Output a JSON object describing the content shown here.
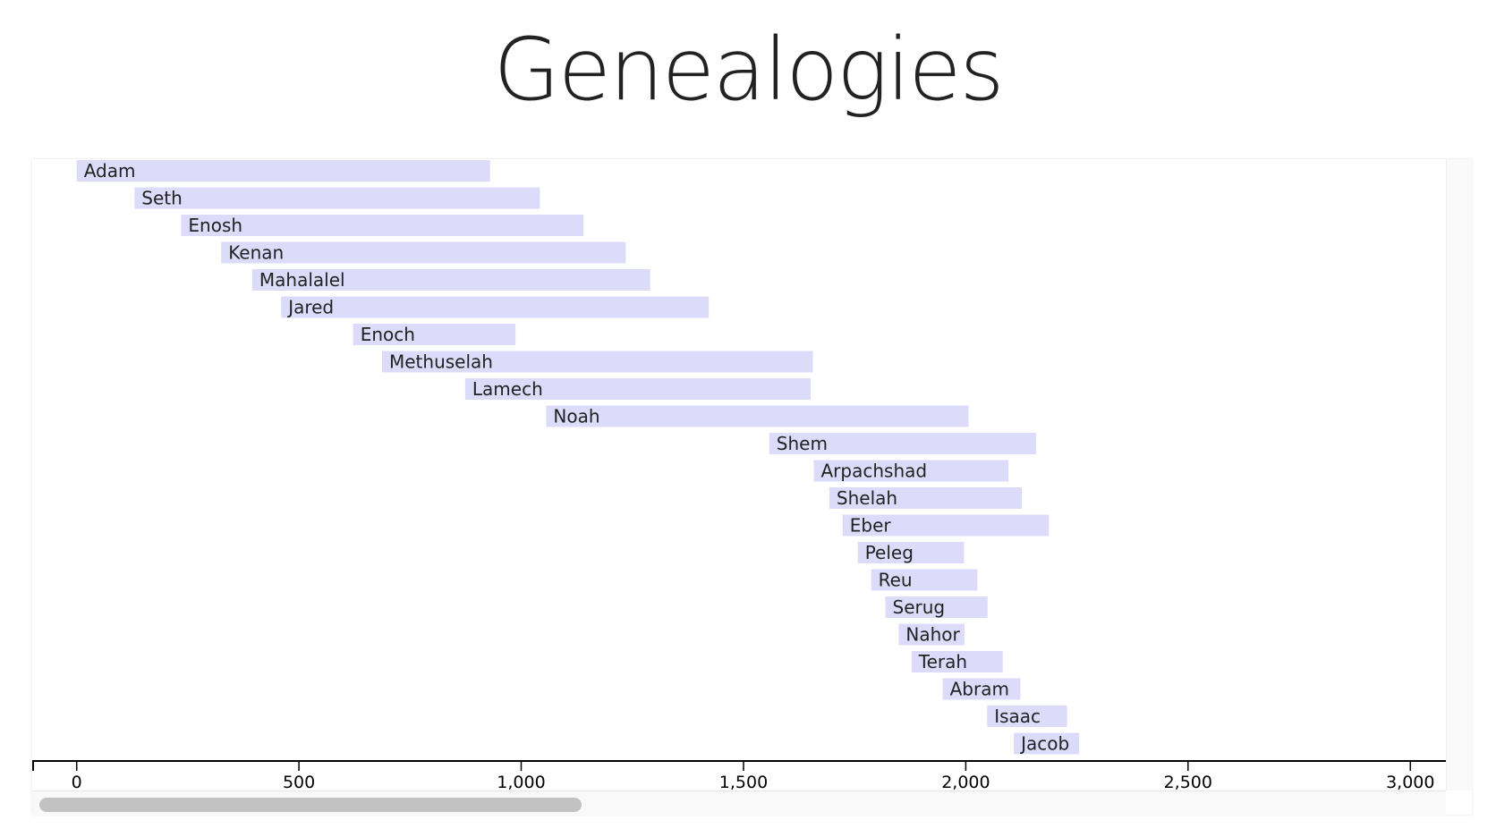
{
  "page": {
    "title": "Genealogies"
  },
  "colors": {
    "bar_fill": "#dcdcfa",
    "axis": "#000000",
    "title": "#222222",
    "scroll_thumb": "#c2c2c2"
  },
  "chart_data": {
    "type": "bar",
    "orientation": "horizontal-range",
    "title": "Genealogies",
    "xlabel": "",
    "ylabel": "",
    "xlim": [
      -100,
      3080
    ],
    "x_ticks": [
      0,
      500,
      1000,
      1500,
      2000,
      2500,
      3000
    ],
    "x_tick_labels": [
      "0",
      "500",
      "1,000",
      "1,500",
      "2,000",
      "2,500",
      "3,000"
    ],
    "grid": false,
    "series": [
      {
        "values": [
          {
            "name": "Adam",
            "start": 0,
            "end": 930
          },
          {
            "name": "Seth",
            "start": 130,
            "end": 1042
          },
          {
            "name": "Enosh",
            "start": 235,
            "end": 1140
          },
          {
            "name": "Kenan",
            "start": 325,
            "end": 1235
          },
          {
            "name": "Mahalalel",
            "start": 395,
            "end": 1290
          },
          {
            "name": "Jared",
            "start": 460,
            "end": 1422
          },
          {
            "name": "Enoch",
            "start": 622,
            "end": 987
          },
          {
            "name": "Methuselah",
            "start": 687,
            "end": 1656
          },
          {
            "name": "Lamech",
            "start": 874,
            "end": 1651
          },
          {
            "name": "Noah",
            "start": 1056,
            "end": 2006
          },
          {
            "name": "Shem",
            "start": 1558,
            "end": 2158
          },
          {
            "name": "Arpachshad",
            "start": 1658,
            "end": 2096
          },
          {
            "name": "Shelah",
            "start": 1693,
            "end": 2126
          },
          {
            "name": "Eber",
            "start": 1723,
            "end": 2187
          },
          {
            "name": "Peleg",
            "start": 1757,
            "end": 1996
          },
          {
            "name": "Reu",
            "start": 1787,
            "end": 2026
          },
          {
            "name": "Serug",
            "start": 1819,
            "end": 2049
          },
          {
            "name": "Nahor",
            "start": 1849,
            "end": 1997
          },
          {
            "name": "Terah",
            "start": 1878,
            "end": 2083
          },
          {
            "name": "Abram",
            "start": 1948,
            "end": 2123
          },
          {
            "name": "Isaac",
            "start": 2048,
            "end": 2228
          },
          {
            "name": "Jacob",
            "start": 2108,
            "end": 2255
          }
        ]
      }
    ]
  }
}
